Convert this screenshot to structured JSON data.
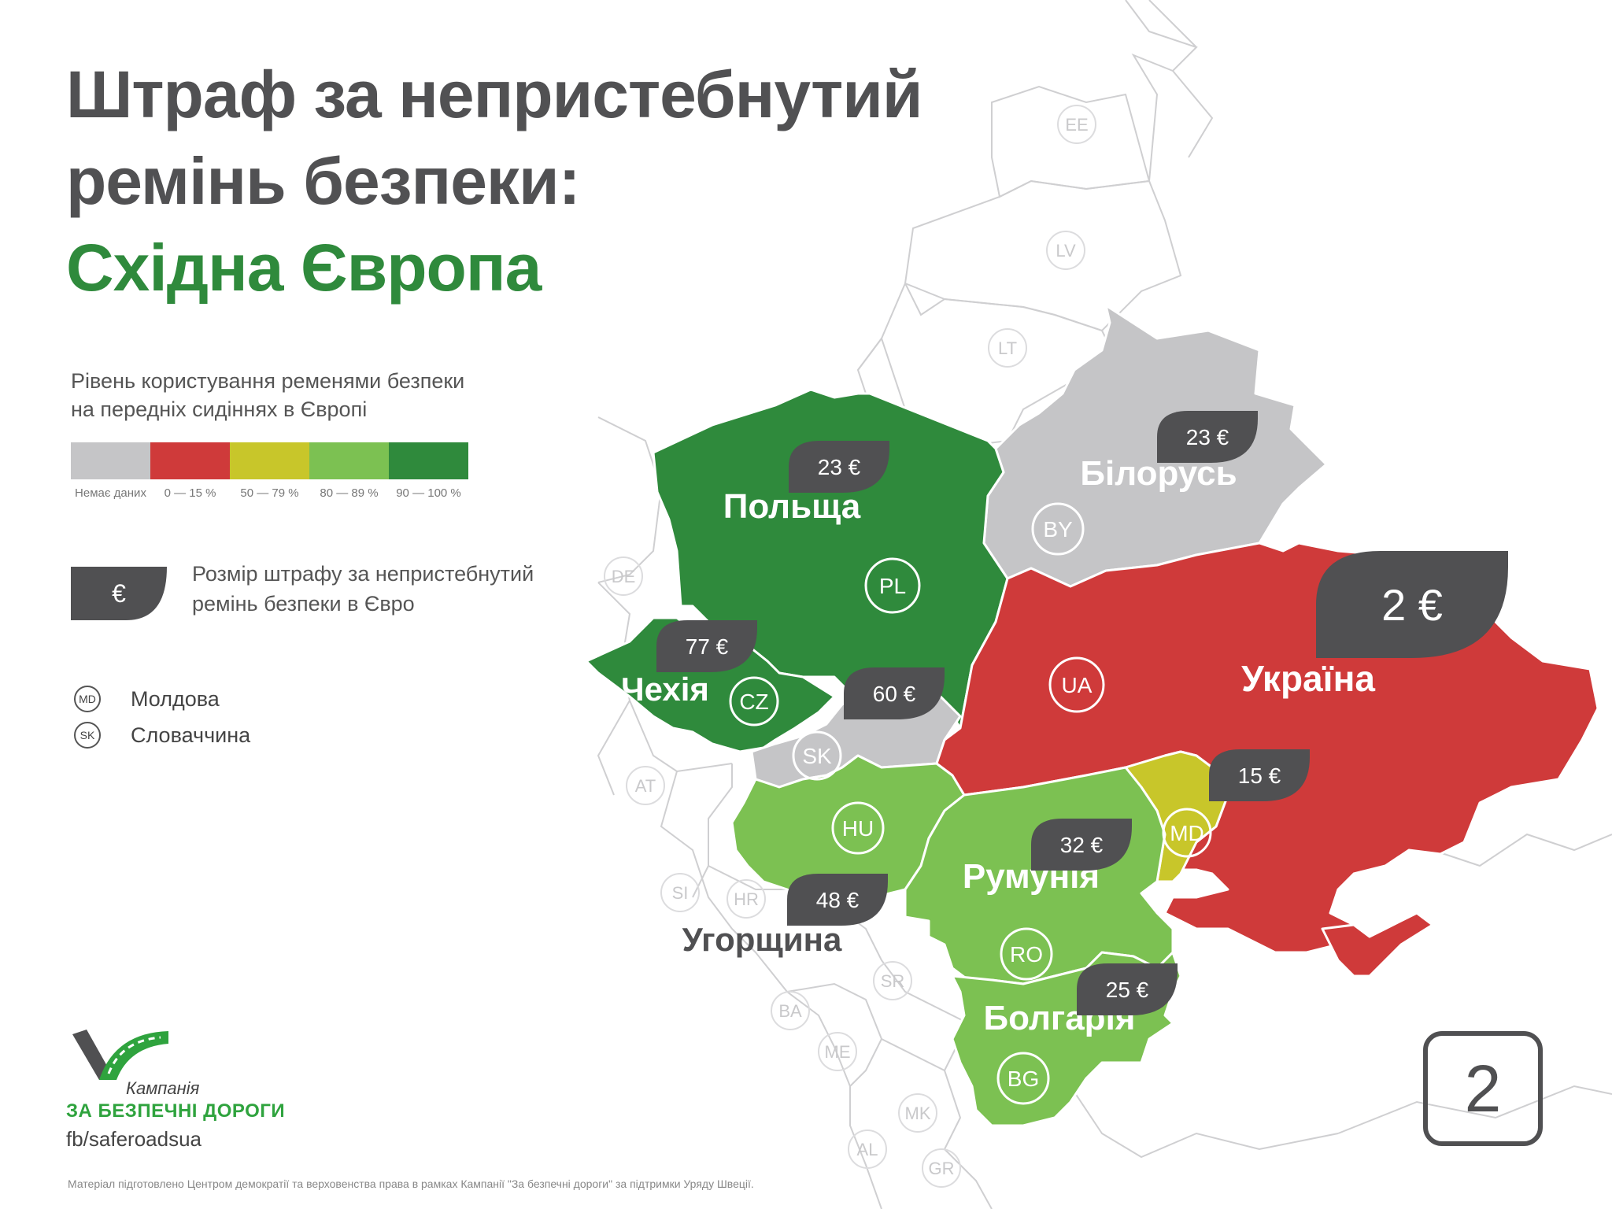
{
  "title": {
    "line1": "Штраф за непристебнутий",
    "line2": "ремінь безпеки:",
    "line3": "Східна Європа"
  },
  "legend": {
    "title_line1": "Рівень користування ременями безпеки",
    "title_line2": "на передніх сидіннях в Європі",
    "scale": [
      {
        "label": "Немає даних",
        "color": "#c5c5c7"
      },
      {
        "label": "0 — 15 %",
        "color": "#cf3a3a"
      },
      {
        "label": "50 — 79 %",
        "color": "#c8c62a"
      },
      {
        "label": "80 — 89 %",
        "color": "#7cc152"
      },
      {
        "label": "90 — 100 %",
        "color": "#2f8a3c"
      }
    ],
    "fine_symbol": "€",
    "fine_line1": "Розмір штрафу за непристебнутий",
    "fine_line2": "ремінь безпеки в Євро",
    "abbreviations": [
      {
        "code": "MD",
        "name": "Молдова"
      },
      {
        "code": "SK",
        "name": "Словаччина"
      }
    ]
  },
  "map": {
    "countries": [
      {
        "id": "poland",
        "name": "Польща",
        "code": "PL",
        "fine": "23 €",
        "level": "90 — 100 %"
      },
      {
        "id": "czechia",
        "name": "Чехія",
        "code": "CZ",
        "fine": "77 €",
        "level": "90 — 100 %"
      },
      {
        "id": "slovakia",
        "name": "",
        "code": "SK",
        "fine": "60 €",
        "level": "Немає даних"
      },
      {
        "id": "belarus",
        "name": "Білорусь",
        "code": "BY",
        "fine": "23 €",
        "level": "Немає даних"
      },
      {
        "id": "ukraine",
        "name": "Україна",
        "code": "UA",
        "fine": "2 €",
        "level": "0 — 15 %"
      },
      {
        "id": "moldova",
        "name": "",
        "code": "MD",
        "fine": "15 €",
        "level": "50 — 79 %"
      },
      {
        "id": "hungary",
        "name": "Угорщина",
        "code": "HU",
        "fine": "48 €",
        "level": "80 — 89 %"
      },
      {
        "id": "romania",
        "name": "Румунія",
        "code": "RO",
        "fine": "32 €",
        "level": "80 — 89 %"
      },
      {
        "id": "bulgaria",
        "name": "Болгарія",
        "code": "BG",
        "fine": "25 €",
        "level": "80 — 89 %"
      }
    ],
    "other_codes": [
      "EE",
      "LV",
      "LT",
      "DE",
      "AT",
      "SI",
      "HR",
      "BA",
      "SR",
      "ME",
      "MK",
      "AL",
      "GR"
    ]
  },
  "branding": {
    "campaign_small": "Кампанія",
    "campaign_big": "ЗА БЕЗПЕЧНІ ДОРОГИ",
    "facebook": "fb/saferoadsua"
  },
  "footnote": "Матеріал підготовлено Центром демократії та верховенства права в рамках Кампанії \"За безпечні дороги\" за підтримки Уряду Швеції.",
  "page_number": "2"
}
